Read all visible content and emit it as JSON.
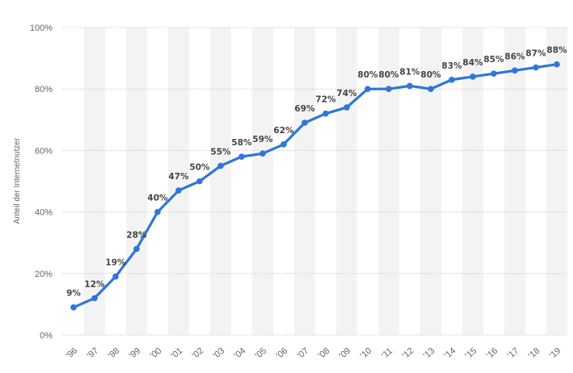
{
  "chart_data": {
    "type": "line",
    "ylabel": "Anteil der Internetnutzer",
    "xlabel": "",
    "ylim": [
      0,
      100
    ],
    "yticks": [
      0,
      20,
      40,
      60,
      80,
      100
    ],
    "ytick_labels": [
      "0%",
      "20%",
      "40%",
      "60%",
      "80%",
      "100%"
    ],
    "categories": [
      "'96",
      "'97",
      "'98",
      "'99",
      "'00",
      "'01",
      "'02",
      "'03",
      "'04",
      "'05",
      "'06",
      "'07",
      "'08",
      "'09",
      "'10",
      "'11",
      "'12",
      "'13",
      "'14",
      "'15",
      "'16",
      "'17",
      "'18",
      "'19"
    ],
    "series": [
      {
        "values": [
          9,
          12,
          19,
          28,
          40,
          47,
          50,
          55,
          58,
          59,
          62,
          69,
          72,
          74,
          80,
          80,
          81,
          80,
          83,
          84,
          85,
          86,
          87,
          88
        ],
        "labels": [
          "9%",
          "12%",
          "19%",
          "28%",
          "40%",
          "47%",
          "50%",
          "55%",
          "58%",
          "59%",
          "62%",
          "69%",
          "72%",
          "74%",
          "80%",
          "80%",
          "81%",
          "80%",
          "83%",
          "84%",
          "85%",
          "86%",
          "87%",
          "88%"
        ]
      }
    ],
    "grid": true,
    "legend": "none",
    "colors": {
      "line": "#2f76d9",
      "grid": "#c8c8c8",
      "band": "#f3f3f3",
      "label": "#444444",
      "axis_text": "#666666"
    }
  }
}
